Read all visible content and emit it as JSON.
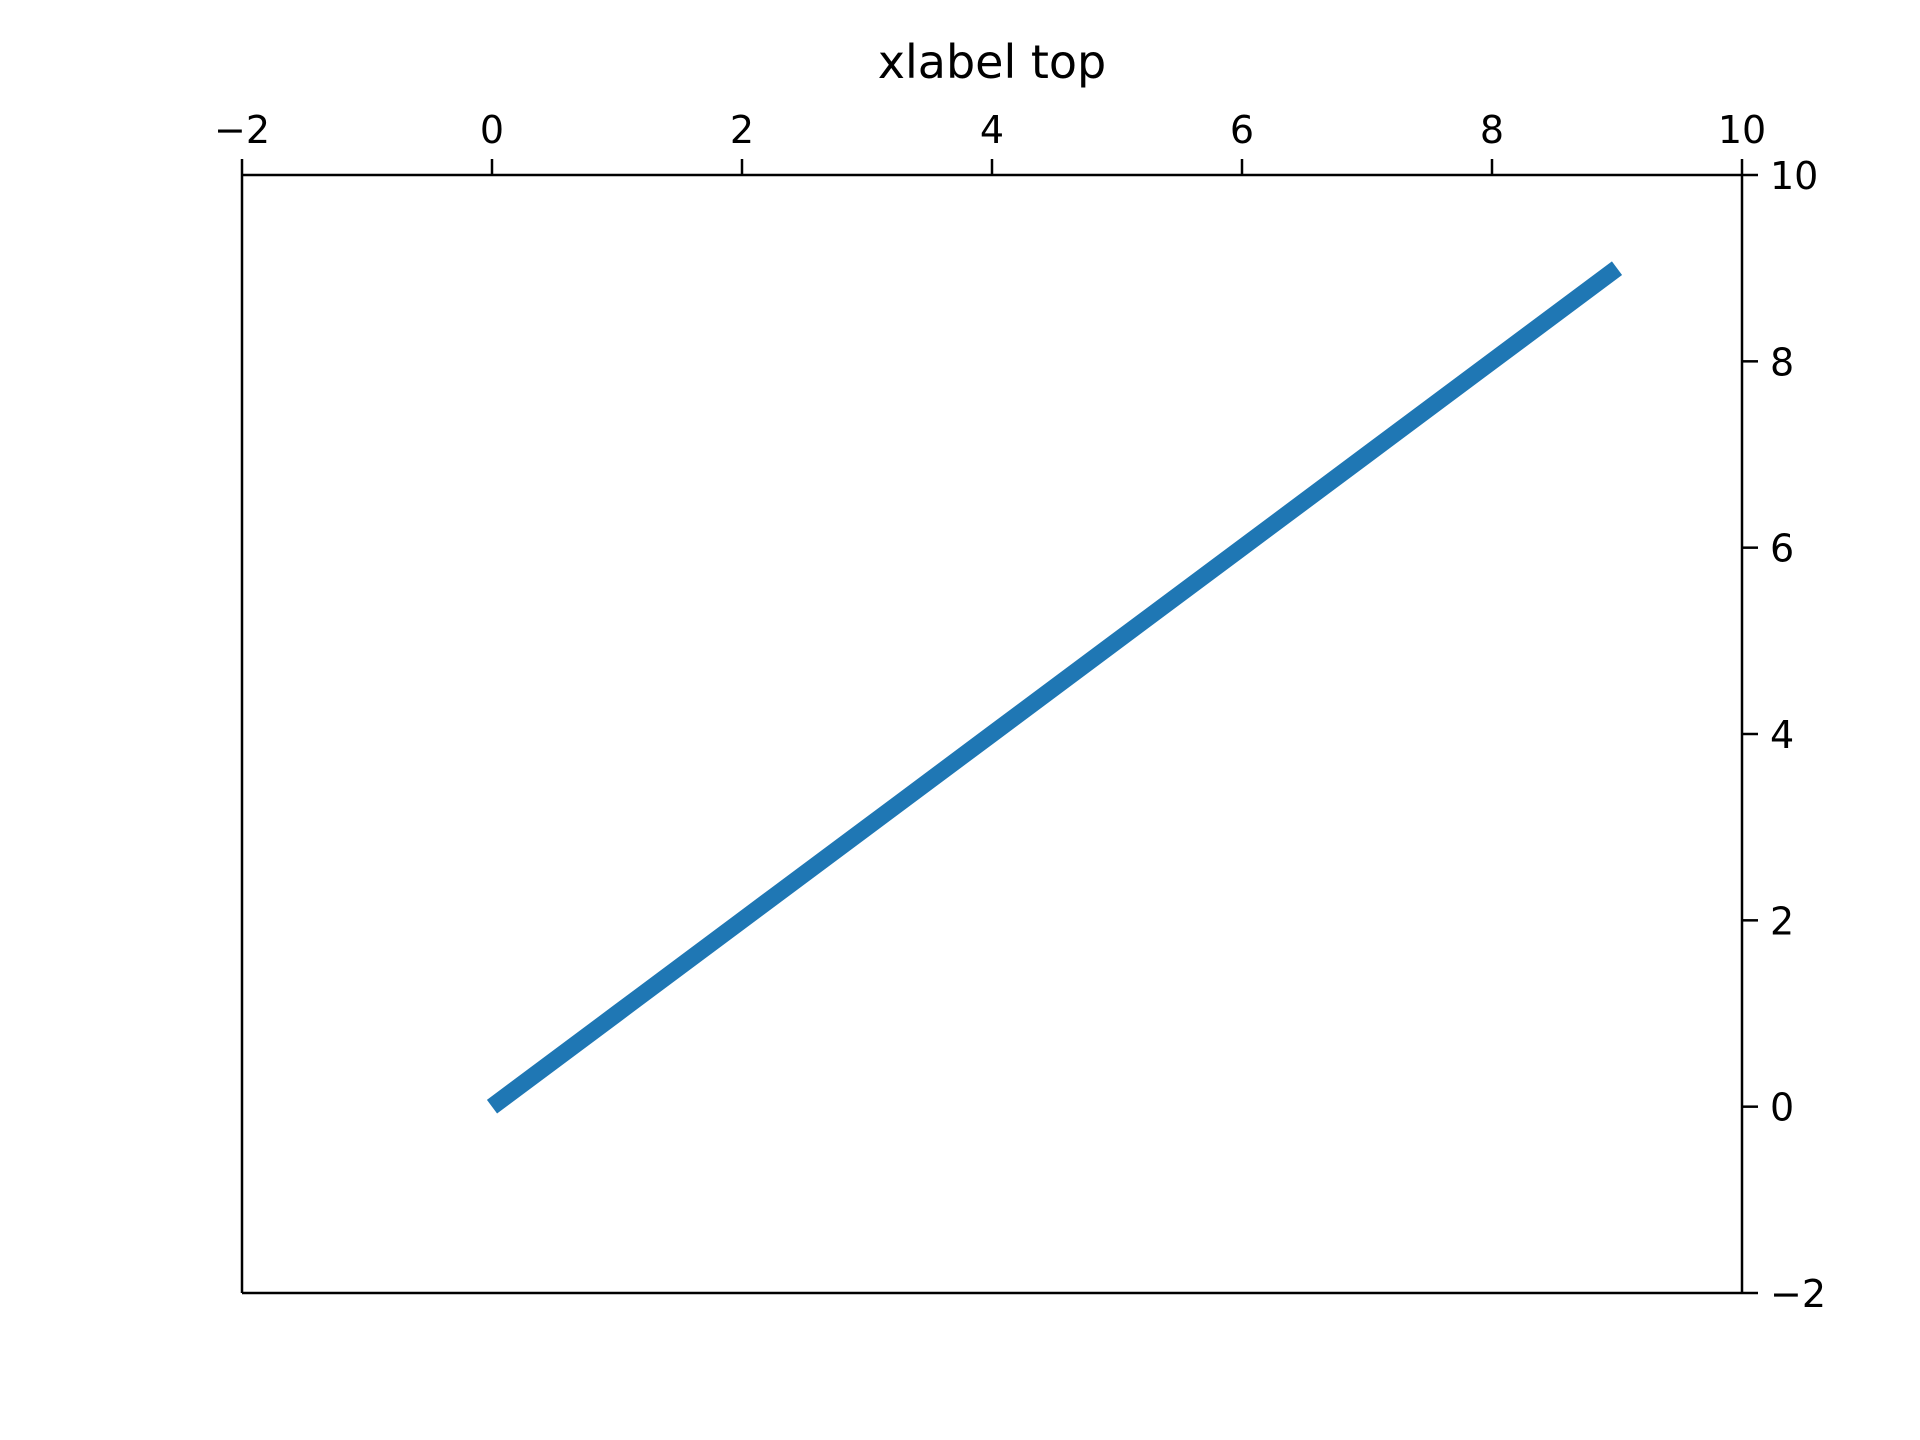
{
  "chart_data": {
    "type": "line",
    "title": "",
    "xlabel": "xlabel top",
    "ylabel": "",
    "xlim": [
      -2,
      10
    ],
    "ylim": [
      -2,
      10
    ],
    "x_ticks": [
      "−2",
      "0",
      "2",
      "4",
      "6",
      "8",
      "10"
    ],
    "y_ticks": [
      "−2",
      "0",
      "2",
      "4",
      "6",
      "8",
      "10"
    ],
    "x_tick_values": [
      -2,
      0,
      2,
      4,
      6,
      8,
      10
    ],
    "y_tick_values": [
      -2,
      0,
      2,
      4,
      6,
      8,
      10
    ],
    "x_axis_position": "top",
    "y_axis_position": "right",
    "grid": false,
    "series": [
      {
        "x": [
          0,
          1,
          2,
          3,
          4,
          5,
          6,
          7,
          8,
          9
        ],
        "y": [
          0,
          1,
          2,
          3,
          4,
          5,
          6,
          7,
          8,
          9
        ],
        "color": "#1f77b4"
      }
    ]
  }
}
